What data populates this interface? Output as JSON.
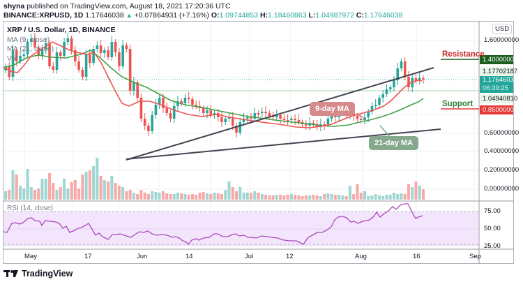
{
  "header": {
    "publisher": "shyna",
    "published_text": " published on TradingView.com, August 18, 2021 17:20:36 UTC",
    "symbol": "BINANCE:XRPUSD, 1D",
    "last": "1.17646038",
    "change": "+0.07864931 (+7.16%)",
    "open_label": "O:",
    "open": "1.09744853",
    "high_label": "H:",
    "high": "1.18460863",
    "low_label": "L:",
    "low": "1.04987972",
    "close_label": "C:",
    "close": "1.17646038"
  },
  "legend": {
    "title": "XRP / U.S. Dollar, 1D, BINANCE",
    "ma9": "MA (9, close)",
    "ma21": "MA (21, close)",
    "vol": "Vol",
    "rsi": "RSI (14, close)"
  },
  "price_axis": {
    "currency": "USD",
    "ticks": [
      "1.60000000",
      "1.40000000",
      "1.17702187",
      "1.17646038",
      "06:39:25",
      "1.04940810",
      "0.85000000",
      "0.60000000",
      "0.40000000",
      "0.20000000",
      "0.00000000"
    ]
  },
  "rsi_axis": {
    "ticks": [
      "75.00",
      "50.00",
      "25.00"
    ]
  },
  "time_axis": {
    "ticks": [
      "May",
      "17",
      "Jun",
      "14",
      "Jul",
      "12",
      "Aug",
      "16",
      "Sep"
    ]
  },
  "annotations": {
    "resistance": "Resistance",
    "support": "Support",
    "ma9_bubble": "9-day MA",
    "ma21_bubble": "21-day MA"
  },
  "colors": {
    "up": "#26a69a",
    "down": "#ef5350",
    "ma9": "#ef5350",
    "ma21": "#43a047",
    "rsi": "#ab47bc",
    "resistance_tag": "#1b5e20",
    "support_tag": "#e53935",
    "last_price_tag": "#26a69a"
  },
  "footer": {
    "brand": "TradingView"
  },
  "chart_data": {
    "type": "candlestick",
    "title": "XRP / U.S. Dollar, 1D, BINANCE",
    "xlabel": "",
    "ylabel": "USD",
    "ylim": [
      0,
      1.7
    ],
    "x_ticks": [
      "May",
      "17",
      "Jun",
      "14",
      "Jul",
      "12",
      "Aug",
      "16",
      "Sep"
    ],
    "levels": {
      "resistance": 1.4,
      "support": 0.85,
      "last": 1.17646038,
      "high_marker": 1.17702187,
      "low_marker": 1.0494081
    },
    "ohlc_last": {
      "open": 1.09744853,
      "high": 1.18460863,
      "low": 1.04987972,
      "close": 1.17646038,
      "change": 0.07864931,
      "change_pct": 7.16
    },
    "series": [
      {
        "name": "MA (9, close)",
        "approx_points": [
          [
            0,
            1.2
          ],
          [
            20,
            1.4
          ],
          [
            40,
            1.3
          ],
          [
            60,
            1.48
          ],
          [
            80,
            1.36
          ],
          [
            100,
            1.32
          ],
          [
            120,
            1.25
          ],
          [
            140,
            1.15
          ],
          [
            150,
            1.03
          ],
          [
            160,
            0.95
          ],
          [
            170,
            0.92
          ],
          [
            190,
            0.98
          ],
          [
            210,
            0.96
          ],
          [
            230,
            0.88
          ],
          [
            260,
            0.82
          ],
          [
            290,
            0.73
          ],
          [
            310,
            0.72
          ],
          [
            340,
            0.7
          ],
          [
            370,
            0.68
          ],
          [
            400,
            0.67
          ],
          [
            430,
            0.66
          ],
          [
            460,
            0.63
          ],
          [
            480,
            0.64
          ],
          [
            500,
            0.68
          ],
          [
            520,
            0.74
          ],
          [
            540,
            0.79
          ],
          [
            560,
            0.84
          ],
          [
            580,
            0.95
          ],
          [
            600,
            1.07
          ]
        ]
      },
      {
        "name": "MA (21, close)",
        "approx_points": [
          [
            0,
            1.3
          ],
          [
            30,
            1.38
          ],
          [
            60,
            1.37
          ],
          [
            90,
            1.38
          ],
          [
            120,
            1.4
          ],
          [
            140,
            1.36
          ],
          [
            160,
            1.25
          ],
          [
            190,
            1.15
          ],
          [
            210,
            1.1
          ],
          [
            230,
            1.02
          ],
          [
            260,
            0.95
          ],
          [
            290,
            0.85
          ],
          [
            320,
            0.76
          ],
          [
            350,
            0.72
          ],
          [
            380,
            0.7
          ],
          [
            410,
            0.69
          ],
          [
            440,
            0.68
          ],
          [
            470,
            0.65
          ],
          [
            490,
            0.63
          ],
          [
            510,
            0.64
          ],
          [
            530,
            0.68
          ],
          [
            550,
            0.73
          ],
          [
            570,
            0.8
          ],
          [
            590,
            0.87
          ]
        ]
      },
      {
        "name": "RSI (14, close)",
        "values_range": [
          28,
          85
        ],
        "last": 68
      }
    ],
    "trendlines": [
      {
        "name": "upper channel",
        "from": [
          181,
          0.95
        ],
        "to": [
          622,
          1.35
        ]
      },
      {
        "name": "lower channel",
        "from": [
          181,
          0.32
        ],
        "to": [
          632,
          0.62
        ]
      }
    ],
    "volume": {
      "max_bar_date": "mid-May",
      "recent_spike": "Aug 13-14"
    }
  }
}
